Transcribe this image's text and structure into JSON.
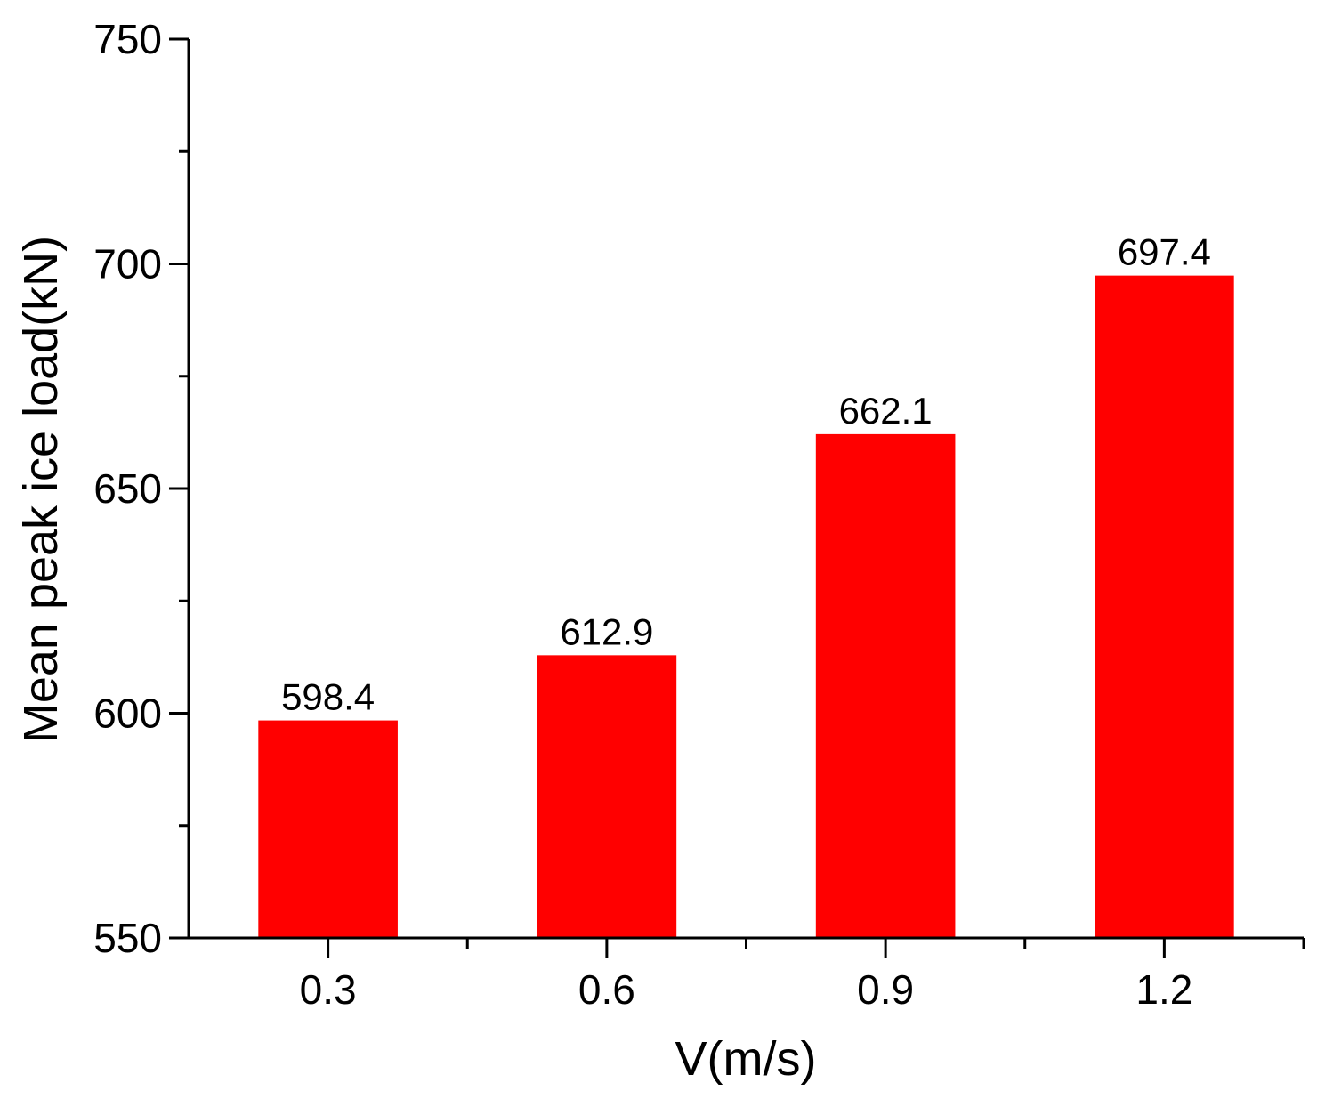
{
  "chart_data": {
    "type": "bar",
    "categories": [
      "0.3",
      "0.6",
      "0.9",
      "1.2"
    ],
    "values": [
      598.4,
      612.9,
      662.1,
      697.4
    ],
    "data_labels": [
      "598.4",
      "612.9",
      "662.1",
      "697.4"
    ],
    "title": "",
    "xlabel": "V(m/s)",
    "ylabel": "Mean peak ice load(kN)",
    "ylim": [
      550,
      750
    ],
    "y_ticks": [
      550,
      600,
      650,
      700,
      750
    ],
    "y_minor_step": 25,
    "grid": false,
    "legend": "none",
    "bar_color": "#ff0000"
  }
}
